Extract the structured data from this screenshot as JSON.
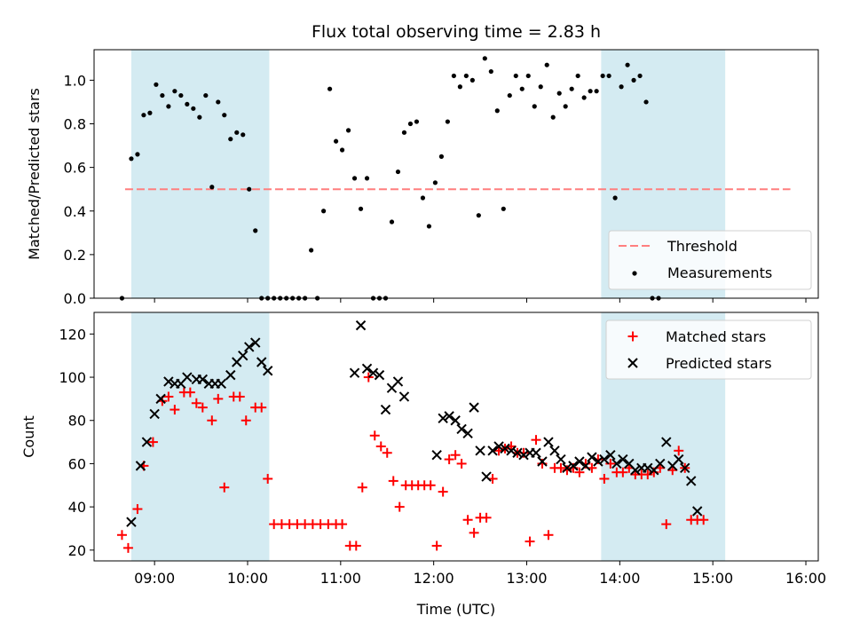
{
  "chart_data": [
    {
      "type": "scatter",
      "title": "Flux total observing time = 2.83 h",
      "ylabel": "Matched/Predicted stars",
      "xlim": [
        "08:21",
        "16:08"
      ],
      "ylim": [
        0,
        1.14
      ],
      "yticks": [
        "0.0",
        "0.2",
        "0.4",
        "0.6",
        "0.8",
        "1.0"
      ],
      "xticks": [
        "09:00",
        "10:00",
        "11:00",
        "12:00",
        "13:00",
        "14:00",
        "15:00",
        "16:00"
      ],
      "shaded_intervals": [
        [
          "08:45",
          "10:14"
        ],
        [
          "13:48",
          "15:08"
        ]
      ],
      "threshold": {
        "value": 0.5,
        "x_start": "08:41",
        "x_end": "15:50",
        "color": "#ff7f7f"
      },
      "legend": {
        "position": "lower right",
        "entries": [
          "Threshold",
          "Measurements"
        ]
      },
      "series": [
        {
          "name": "Measurements",
          "color": "#000000",
          "points": [
            [
              "08:39",
              0.0
            ],
            [
              "08:45",
              0.64
            ],
            [
              "08:49",
              0.66
            ],
            [
              "08:53",
              0.84
            ],
            [
              "08:57",
              0.85
            ],
            [
              "09:01",
              0.98
            ],
            [
              "09:05",
              0.93
            ],
            [
              "09:09",
              0.88
            ],
            [
              "09:13",
              0.95
            ],
            [
              "09:17",
              0.93
            ],
            [
              "09:21",
              0.89
            ],
            [
              "09:25",
              0.87
            ],
            [
              "09:29",
              0.83
            ],
            [
              "09:33",
              0.93
            ],
            [
              "09:37",
              0.51
            ],
            [
              "09:41",
              0.9
            ],
            [
              "09:45",
              0.84
            ],
            [
              "09:49",
              0.73
            ],
            [
              "09:53",
              0.76
            ],
            [
              "09:57",
              0.75
            ],
            [
              "10:01",
              0.5
            ],
            [
              "10:05",
              0.31
            ],
            [
              "10:09",
              0.0
            ],
            [
              "10:13",
              0.0
            ],
            [
              "10:17",
              0.0
            ],
            [
              "10:21",
              0.0
            ],
            [
              "10:25",
              0.0
            ],
            [
              "10:29",
              0.0
            ],
            [
              "10:33",
              0.0
            ],
            [
              "10:37",
              0.0
            ],
            [
              "10:41",
              0.22
            ],
            [
              "10:45",
              0.0
            ],
            [
              "10:49",
              0.4
            ],
            [
              "10:53",
              0.96
            ],
            [
              "10:57",
              0.72
            ],
            [
              "11:01",
              0.68
            ],
            [
              "11:05",
              0.77
            ],
            [
              "11:09",
              0.55
            ],
            [
              "11:13",
              0.41
            ],
            [
              "11:17",
              0.55
            ],
            [
              "11:21",
              0.0
            ],
            [
              "11:25",
              0.0
            ],
            [
              "11:29",
              0.0
            ],
            [
              "11:33",
              0.35
            ],
            [
              "11:37",
              0.58
            ],
            [
              "11:41",
              0.76
            ],
            [
              "11:45",
              0.8
            ],
            [
              "11:49",
              0.81
            ],
            [
              "11:53",
              0.46
            ],
            [
              "11:57",
              0.33
            ],
            [
              "12:01",
              0.53
            ],
            [
              "12:05",
              0.65
            ],
            [
              "12:09",
              0.81
            ],
            [
              "12:13",
              1.02
            ],
            [
              "12:17",
              0.97
            ],
            [
              "12:21",
              1.02
            ],
            [
              "12:25",
              1.0
            ],
            [
              "12:29",
              0.38
            ],
            [
              "12:33",
              1.1
            ],
            [
              "12:37",
              1.04
            ],
            [
              "12:41",
              0.86
            ],
            [
              "12:45",
              0.41
            ],
            [
              "12:49",
              0.93
            ],
            [
              "12:53",
              1.02
            ],
            [
              "12:57",
              0.96
            ],
            [
              "13:01",
              1.02
            ],
            [
              "13:05",
              0.88
            ],
            [
              "13:09",
              0.97
            ],
            [
              "13:13",
              1.07
            ],
            [
              "13:17",
              0.83
            ],
            [
              "13:21",
              0.94
            ],
            [
              "13:25",
              0.88
            ],
            [
              "13:29",
              0.96
            ],
            [
              "13:33",
              1.02
            ],
            [
              "13:37",
              0.92
            ],
            [
              "13:41",
              0.95
            ],
            [
              "13:45",
              0.95
            ],
            [
              "13:49",
              1.02
            ],
            [
              "13:53",
              1.02
            ],
            [
              "13:57",
              0.46
            ],
            [
              "14:01",
              0.97
            ],
            [
              "14:05",
              1.07
            ],
            [
              "14:09",
              1.0
            ],
            [
              "14:13",
              1.02
            ],
            [
              "14:17",
              0.9
            ],
            [
              "14:21",
              0.0
            ],
            [
              "14:25",
              0.0
            ]
          ]
        }
      ]
    },
    {
      "type": "scatter",
      "xlabel": "Time (UTC)",
      "ylabel": "Count",
      "xlim": [
        "08:21",
        "16:08"
      ],
      "ylim": [
        15,
        130
      ],
      "yticks": [
        "20",
        "40",
        "60",
        "80",
        "100",
        "120"
      ],
      "xticks": [
        "09:00",
        "10:00",
        "11:00",
        "12:00",
        "13:00",
        "14:00",
        "15:00",
        "16:00"
      ],
      "shaded_intervals": [
        [
          "08:45",
          "10:14"
        ],
        [
          "13:48",
          "15:08"
        ]
      ],
      "legend": {
        "position": "upper right",
        "entries": [
          "Matched stars",
          "Predicted stars"
        ]
      },
      "series": [
        {
          "name": "Matched stars",
          "marker": "plus",
          "color": "#ff0000",
          "points": [
            [
              "08:39",
              27
            ],
            [
              "08:43",
              21
            ],
            [
              "08:49",
              39
            ],
            [
              "08:53",
              59
            ],
            [
              "08:59",
              70
            ],
            [
              "09:05",
              89
            ],
            [
              "09:09",
              91
            ],
            [
              "09:13",
              85
            ],
            [
              "09:19",
              93
            ],
            [
              "09:23",
              93
            ],
            [
              "09:27",
              88
            ],
            [
              "09:31",
              86
            ],
            [
              "09:37",
              80
            ],
            [
              "09:41",
              90
            ],
            [
              "09:45",
              49
            ],
            [
              "09:51",
              91
            ],
            [
              "09:55",
              91
            ],
            [
              "09:59",
              80
            ],
            [
              "10:05",
              86
            ],
            [
              "10:09",
              86
            ],
            [
              "10:13",
              53
            ],
            [
              "10:17",
              32
            ],
            [
              "10:22",
              32
            ],
            [
              "10:27",
              32
            ],
            [
              "10:32",
              32
            ],
            [
              "10:37",
              32
            ],
            [
              "10:42",
              32
            ],
            [
              "10:47",
              32
            ],
            [
              "10:52",
              32
            ],
            [
              "10:57",
              32
            ],
            [
              "11:01",
              32
            ],
            [
              "11:06",
              22
            ],
            [
              "11:10",
              22
            ],
            [
              "11:14",
              49
            ],
            [
              "11:18",
              100
            ],
            [
              "11:22",
              73
            ],
            [
              "11:26",
              68
            ],
            [
              "11:30",
              65
            ],
            [
              "11:34",
              52
            ],
            [
              "11:38",
              40
            ],
            [
              "11:42",
              50
            ],
            [
              "11:46",
              50
            ],
            [
              "11:50",
              50
            ],
            [
              "11:54",
              50
            ],
            [
              "11:58",
              50
            ],
            [
              "12:02",
              22
            ],
            [
              "12:06",
              47
            ],
            [
              "12:10",
              62
            ],
            [
              "12:14",
              64
            ],
            [
              "12:18",
              60
            ],
            [
              "12:22",
              34
            ],
            [
              "12:26",
              28
            ],
            [
              "12:30",
              35
            ],
            [
              "12:34",
              35
            ],
            [
              "12:38",
              53
            ],
            [
              "12:42",
              66
            ],
            [
              "12:46",
              67
            ],
            [
              "12:50",
              68
            ],
            [
              "12:54",
              65
            ],
            [
              "12:58",
              65
            ],
            [
              "13:02",
              24
            ],
            [
              "13:06",
              71
            ],
            [
              "13:10",
              60
            ],
            [
              "13:14",
              27
            ],
            [
              "13:18",
              58
            ],
            [
              "13:22",
              58
            ],
            [
              "13:26",
              57
            ],
            [
              "13:30",
              58
            ],
            [
              "13:34",
              56
            ],
            [
              "13:38",
              60
            ],
            [
              "13:42",
              58
            ],
            [
              "13:46",
              62
            ],
            [
              "13:50",
              53
            ],
            [
              "13:54",
              60
            ],
            [
              "13:58",
              56
            ],
            [
              "14:02",
              56
            ],
            [
              "14:06",
              58
            ],
            [
              "14:10",
              55
            ],
            [
              "14:14",
              55
            ],
            [
              "14:18",
              55
            ],
            [
              "14:22",
              56
            ],
            [
              "14:26",
              58
            ],
            [
              "14:30",
              32
            ],
            [
              "14:34",
              57
            ],
            [
              "14:38",
              66
            ],
            [
              "14:42",
              58
            ],
            [
              "14:46",
              34
            ],
            [
              "14:50",
              34
            ],
            [
              "14:54",
              34
            ]
          ]
        },
        {
          "name": "Predicted stars",
          "marker": "x",
          "color": "#000000",
          "points": [
            [
              "08:45",
              33
            ],
            [
              "08:51",
              59
            ],
            [
              "08:55",
              70
            ],
            [
              "09:00",
              83
            ],
            [
              "09:04",
              90
            ],
            [
              "09:09",
              98
            ],
            [
              "09:13",
              97
            ],
            [
              "09:17",
              97
            ],
            [
              "09:21",
              100
            ],
            [
              "09:27",
              99
            ],
            [
              "09:31",
              99
            ],
            [
              "09:35",
              97
            ],
            [
              "09:39",
              97
            ],
            [
              "09:43",
              97
            ],
            [
              "09:49",
              101
            ],
            [
              "09:53",
              107
            ],
            [
              "09:57",
              110
            ],
            [
              "10:01",
              114
            ],
            [
              "10:05",
              116
            ],
            [
              "10:09",
              107
            ],
            [
              "10:13",
              103
            ],
            [
              "11:09",
              102
            ],
            [
              "11:13",
              124
            ],
            [
              "11:17",
              104
            ],
            [
              "11:21",
              102
            ],
            [
              "11:25",
              101
            ],
            [
              "11:29",
              85
            ],
            [
              "11:33",
              95
            ],
            [
              "11:37",
              98
            ],
            [
              "11:41",
              91
            ],
            [
              "12:02",
              64
            ],
            [
              "12:06",
              81
            ],
            [
              "12:10",
              82
            ],
            [
              "12:14",
              80
            ],
            [
              "12:18",
              76
            ],
            [
              "12:22",
              74
            ],
            [
              "12:26",
              86
            ],
            [
              "12:30",
              66
            ],
            [
              "12:34",
              54
            ],
            [
              "12:38",
              66
            ],
            [
              "12:42",
              68
            ],
            [
              "12:46",
              67
            ],
            [
              "12:50",
              66
            ],
            [
              "12:54",
              65
            ],
            [
              "12:58",
              64
            ],
            [
              "13:02",
              65
            ],
            [
              "13:06",
              65
            ],
            [
              "13:10",
              61
            ],
            [
              "13:14",
              70
            ],
            [
              "13:18",
              66
            ],
            [
              "13:22",
              62
            ],
            [
              "13:26",
              58
            ],
            [
              "13:30",
              59
            ],
            [
              "13:34",
              61
            ],
            [
              "13:38",
              59
            ],
            [
              "13:42",
              63
            ],
            [
              "13:46",
              61
            ],
            [
              "13:50",
              62
            ],
            [
              "13:54",
              64
            ],
            [
              "13:58",
              60
            ],
            [
              "14:02",
              62
            ],
            [
              "14:06",
              60
            ],
            [
              "14:10",
              57
            ],
            [
              "14:14",
              58
            ],
            [
              "14:18",
              58
            ],
            [
              "14:22",
              57
            ],
            [
              "14:26",
              60
            ],
            [
              "14:30",
              70
            ],
            [
              "14:34",
              59
            ],
            [
              "14:38",
              62
            ],
            [
              "14:42",
              58
            ],
            [
              "14:46",
              52
            ],
            [
              "14:50",
              38
            ]
          ]
        }
      ]
    }
  ]
}
